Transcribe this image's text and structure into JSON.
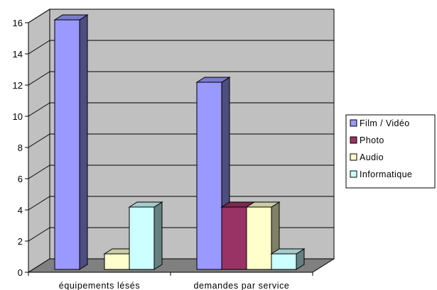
{
  "chart_data": {
    "type": "bar",
    "style": "3d-clustered-column",
    "categories": [
      "équipements lésés",
      "demandes par service"
    ],
    "series": [
      {
        "name": "Film / Vidéo",
        "values": [
          16,
          12
        ],
        "color": "#9999FF"
      },
      {
        "name": "Photo",
        "values": [
          0,
          4
        ],
        "color": "#993366"
      },
      {
        "name": "Audio",
        "values": [
          1,
          4
        ],
        "color": "#FFFFCC"
      },
      {
        "name": "Informatique",
        "values": [
          4,
          1
        ],
        "color": "#CCFFFF"
      }
    ],
    "y_ticks": [
      "0",
      "2",
      "4",
      "6",
      "8",
      "10",
      "12",
      "14",
      "16"
    ],
    "ylim": [
      0,
      16
    ],
    "grid": true,
    "legend_position": "right",
    "wall_color": "#C0C0C0",
    "floor_color": "#808080"
  }
}
